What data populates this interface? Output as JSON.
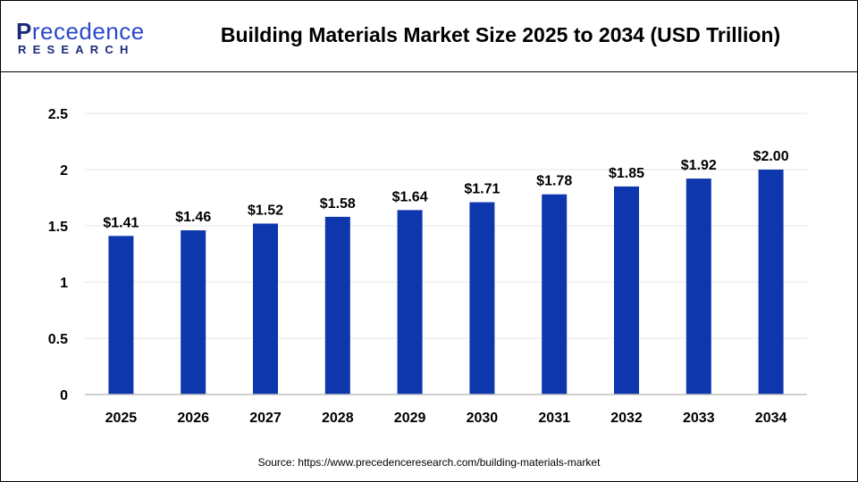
{
  "logo": {
    "line1_initial": "P",
    "line1_rest": "recedence",
    "line2": "RESEARCH"
  },
  "source": "Source: https://www.precedenceresearch.com/building-materials-market",
  "chart_data": {
    "type": "bar",
    "title": "Building Materials Market Size 2025 to 2034 (USD Trillion)",
    "xlabel": "",
    "ylabel": "",
    "categories": [
      "2025",
      "2026",
      "2027",
      "2028",
      "2029",
      "2030",
      "2031",
      "2032",
      "2033",
      "2034"
    ],
    "values": [
      1.41,
      1.46,
      1.52,
      1.58,
      1.64,
      1.71,
      1.78,
      1.85,
      1.92,
      2.0
    ],
    "data_labels": [
      "$1.41",
      "$1.46",
      "$1.52",
      "$1.58",
      "$1.64",
      "$1.71",
      "$1.78",
      "$1.85",
      "$1.92",
      "$2.00"
    ],
    "ylim": [
      0,
      2.5
    ],
    "yticks": [
      "0",
      "0.5",
      "1",
      "1.5",
      "2",
      "2.5"
    ],
    "grid": true,
    "legend": "none",
    "bar_color": "#0e37ad"
  }
}
